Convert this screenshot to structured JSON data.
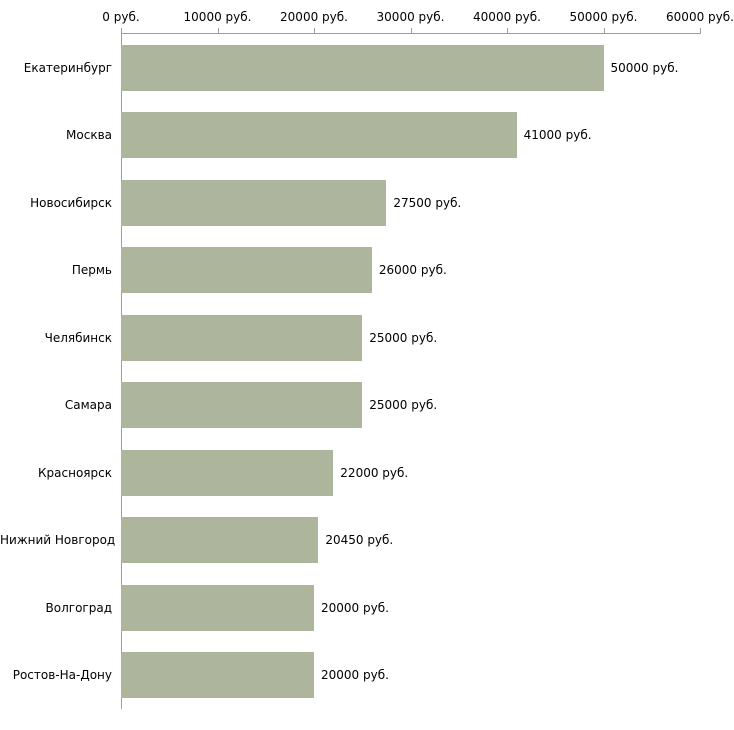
{
  "chart_data": {
    "type": "bar",
    "orientation": "horizontal",
    "title": "",
    "xlabel": "",
    "ylabel": "",
    "categories": [
      "Екатеринбург",
      "Москва",
      "Новосибирск",
      "Пермь",
      "Челябинск",
      "Самара",
      "Красноярск",
      "Нижний Новгород",
      "Волгоград",
      "Ростов-На-Дону"
    ],
    "values": [
      50000,
      41000,
      27500,
      26000,
      25000,
      25000,
      22000,
      20450,
      20000,
      20000
    ],
    "value_labels": [
      "50000 руб.",
      "41000 руб.",
      "27500 руб.",
      "26000 руб.",
      "25000 руб.",
      "25000 руб.",
      "22000 руб.",
      "20450 руб.",
      "20000 руб.",
      "20000 руб."
    ],
    "x_ticks": [
      0,
      10000,
      20000,
      30000,
      40000,
      50000,
      60000
    ],
    "x_tick_labels": [
      "0 руб.",
      "10000 руб.",
      "20000 руб.",
      "30000 руб.",
      "40000 руб.",
      "50000 руб.",
      "60000 руб."
    ],
    "xlim": [
      0,
      60000
    ],
    "grid": false,
    "legend": false,
    "bar_color": "#adb69c",
    "axis_color": "#9d9d9d",
    "text_color": "#000000",
    "background_color": "#ffffff"
  }
}
